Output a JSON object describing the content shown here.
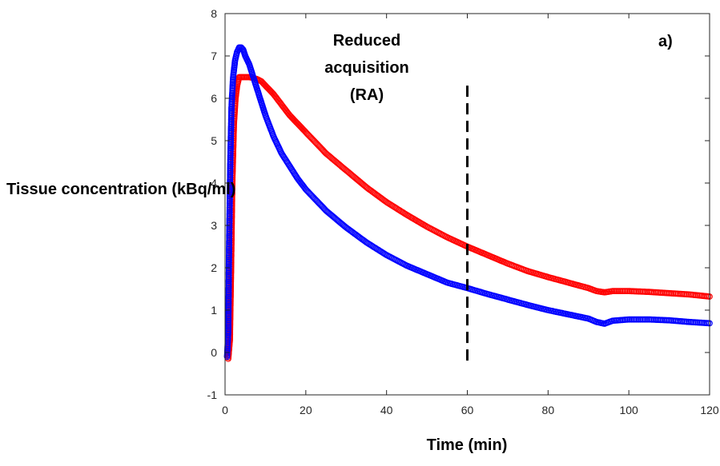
{
  "chart_data": {
    "type": "scatter",
    "title": "",
    "xlabel": "Time (min)",
    "ylabel": "Tissue concentration (kBq/ml)",
    "xlim": [
      0,
      120
    ],
    "ylim": [
      -1,
      8
    ],
    "xticks": [
      0,
      20,
      40,
      60,
      80,
      100,
      120
    ],
    "yticks": [
      -1,
      0,
      1,
      2,
      3,
      4,
      5,
      6,
      7,
      8
    ],
    "grid": false,
    "legend": null,
    "annotations": {
      "region_label": [
        "Reduced",
        "acquisition",
        "(RA)"
      ],
      "panel_label": "a)",
      "cutoff_x": 60
    },
    "series": [
      {
        "color": "#ff0000",
        "marker": "circle-open",
        "x": [
          0.8,
          1.2,
          1.5,
          1.8,
          2.2,
          2.6,
          3.0,
          3.5,
          4,
          5,
          6,
          7,
          8,
          9,
          10,
          12,
          14,
          16,
          18,
          20,
          25,
          30,
          35,
          40,
          45,
          50,
          55,
          60,
          65,
          70,
          75,
          80,
          85,
          90,
          92,
          94,
          96,
          100,
          105,
          110,
          115,
          120
        ],
        "y": [
          -0.15,
          0.3,
          2.0,
          4.0,
          5.4,
          6.0,
          6.3,
          6.5,
          6.5,
          6.5,
          6.5,
          6.48,
          6.45,
          6.4,
          6.3,
          6.1,
          5.85,
          5.6,
          5.4,
          5.2,
          4.7,
          4.3,
          3.9,
          3.55,
          3.25,
          2.97,
          2.72,
          2.5,
          2.3,
          2.1,
          1.92,
          1.78,
          1.65,
          1.52,
          1.45,
          1.42,
          1.45,
          1.45,
          1.43,
          1.4,
          1.37,
          1.32
        ]
      },
      {
        "color": "#0000ff",
        "marker": "circle-open",
        "x": [
          0.5,
          0.8,
          1.0,
          1.3,
          1.6,
          2.0,
          2.5,
          3.0,
          3.5,
          4.0,
          4.5,
          5,
          6,
          7,
          8,
          9,
          10,
          12,
          14,
          16,
          18,
          20,
          25,
          30,
          35,
          40,
          45,
          50,
          55,
          60,
          65,
          70,
          75,
          80,
          85,
          90,
          92,
          94,
          96,
          100,
          105,
          110,
          115,
          120
        ],
        "y": [
          -0.1,
          0.5,
          2.5,
          4.5,
          5.8,
          6.5,
          6.9,
          7.1,
          7.2,
          7.2,
          7.15,
          7.0,
          6.8,
          6.5,
          6.2,
          5.9,
          5.6,
          5.1,
          4.7,
          4.4,
          4.1,
          3.85,
          3.35,
          2.95,
          2.6,
          2.3,
          2.05,
          1.85,
          1.65,
          1.52,
          1.38,
          1.25,
          1.12,
          1.0,
          0.9,
          0.8,
          0.72,
          0.68,
          0.75,
          0.78,
          0.78,
          0.76,
          0.72,
          0.69
        ]
      }
    ]
  }
}
